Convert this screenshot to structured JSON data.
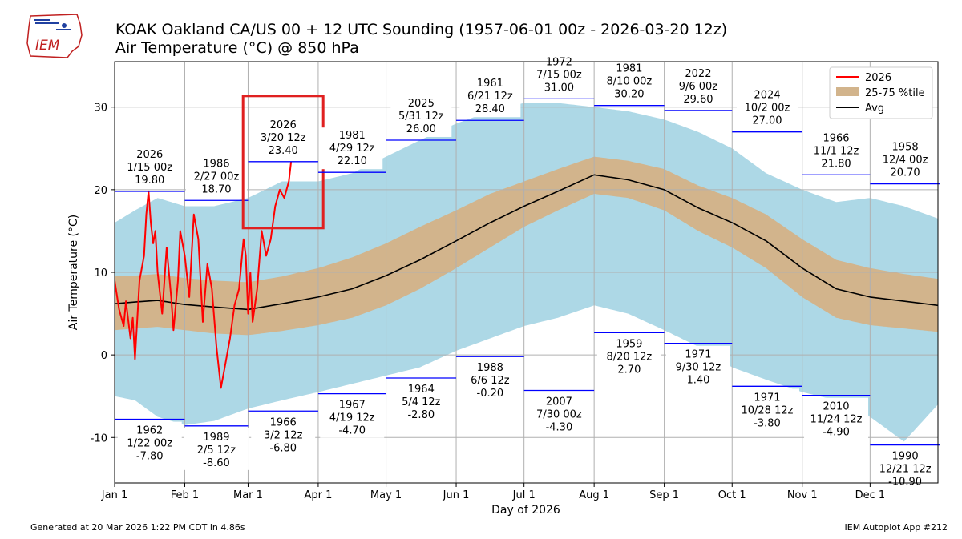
{
  "header": {
    "logo_text": "IEM",
    "title_line1": "KOAK Oakland  CA/US 00 + 12 UTC Sounding (1957-06-01 00z - 2026-03-20 12z)",
    "title_line2": "Air Temperature (°C)  @ 850 hPa"
  },
  "footer": {
    "generated": "Generated at 20 Mar 2026 1:22 PM CDT in 4.86s",
    "app": "IEM Autoplot App #212"
  },
  "colors": {
    "current_year": "#ff0000",
    "percentile_band": "#d2b48c",
    "range_band": "#add8e6",
    "average": "#000000",
    "record_line": "#0000ff",
    "highlight_box": "#e02020"
  },
  "chart_data": {
    "type": "line",
    "xlabel": "Day of 2026",
    "ylabel": "Air Temperature (°C)",
    "xlim": [
      1,
      365
    ],
    "ylim": [
      -15.5,
      35.5
    ],
    "y_ticks": [
      -10,
      0,
      10,
      20,
      30
    ],
    "x_ticks": [
      {
        "label": "Jan 1",
        "day": 1
      },
      {
        "label": "Feb 1",
        "day": 32
      },
      {
        "label": "Mar 1",
        "day": 60
      },
      {
        "label": "Apr 1",
        "day": 91
      },
      {
        "label": "May 1",
        "day": 121
      },
      {
        "label": "Jun 1",
        "day": 152
      },
      {
        "label": "Jul 1",
        "day": 182
      },
      {
        "label": "Aug 1",
        "day": 213
      },
      {
        "label": "Sep 1",
        "day": 244
      },
      {
        "label": "Oct 1",
        "day": 274
      },
      {
        "label": "Nov 1",
        "day": 305
      },
      {
        "label": "Dec 1",
        "day": 335
      }
    ],
    "grid": true,
    "legend_position": "top-right",
    "legend": [
      {
        "label": "2026",
        "kind": "line",
        "color": "#ff0000"
      },
      {
        "label": "25-75 %tile",
        "kind": "patch",
        "color": "#d2b48c"
      },
      {
        "label": "Avg",
        "kind": "line",
        "color": "#000000"
      }
    ],
    "series": [
      {
        "name": "Avg",
        "x": [
          1,
          10,
          20,
          32,
          45,
          60,
          75,
          91,
          106,
          121,
          136,
          152,
          167,
          182,
          197,
          213,
          228,
          244,
          259,
          274,
          289,
          305,
          320,
          335,
          350,
          365
        ],
        "y": [
          6.2,
          6.4,
          6.6,
          6.1,
          5.8,
          5.5,
          6.2,
          7.0,
          8.0,
          9.6,
          11.5,
          13.8,
          16.0,
          18.0,
          19.8,
          21.8,
          21.2,
          20.0,
          17.8,
          16.0,
          13.8,
          10.5,
          8.0,
          7.0,
          6.5,
          6.0
        ]
      },
      {
        "name": "25th percentile",
        "x": [
          1,
          10,
          20,
          32,
          45,
          60,
          75,
          91,
          106,
          121,
          136,
          152,
          167,
          182,
          197,
          213,
          228,
          244,
          259,
          274,
          289,
          305,
          320,
          335,
          350,
          365
        ],
        "y": [
          3.0,
          3.2,
          3.4,
          3.0,
          2.6,
          2.4,
          2.9,
          3.6,
          4.5,
          6.0,
          8.0,
          10.5,
          13.0,
          15.5,
          17.5,
          19.5,
          19.0,
          17.5,
          15.0,
          13.0,
          10.5,
          7.0,
          4.5,
          3.6,
          3.2,
          2.8
        ]
      },
      {
        "name": "75th percentile",
        "x": [
          1,
          10,
          20,
          32,
          45,
          60,
          75,
          91,
          106,
          121,
          136,
          152,
          167,
          182,
          197,
          213,
          228,
          244,
          259,
          274,
          289,
          305,
          320,
          335,
          350,
          365
        ],
        "y": [
          9.5,
          9.6,
          9.8,
          9.3,
          9.0,
          8.8,
          9.5,
          10.5,
          11.8,
          13.5,
          15.5,
          17.5,
          19.5,
          21.0,
          22.5,
          24.0,
          23.5,
          22.5,
          20.5,
          19.0,
          17.0,
          14.0,
          11.5,
          10.5,
          9.8,
          9.2
        ]
      },
      {
        "name": "Minimum",
        "x": [
          1,
          10,
          20,
          32,
          45,
          60,
          75,
          91,
          106,
          121,
          136,
          152,
          167,
          182,
          197,
          213,
          228,
          244,
          259,
          274,
          289,
          305,
          320,
          335,
          350,
          365
        ],
        "y": [
          -5.0,
          -5.5,
          -7.5,
          -8.5,
          -8.0,
          -6.5,
          -5.5,
          -4.5,
          -3.5,
          -2.5,
          -1.5,
          0.5,
          2.0,
          3.5,
          4.5,
          6.0,
          5.0,
          3.0,
          1.0,
          -1.5,
          -3.0,
          -4.5,
          -5.5,
          -7.5,
          -10.5,
          -6.0
        ]
      },
      {
        "name": "Maximum",
        "x": [
          1,
          10,
          20,
          32,
          45,
          60,
          75,
          91,
          106,
          121,
          136,
          152,
          167,
          182,
          197,
          213,
          228,
          244,
          259,
          274,
          289,
          305,
          320,
          335,
          350,
          365
        ],
        "y": [
          16.0,
          17.5,
          19.0,
          18.0,
          18.0,
          19.0,
          21.0,
          21.0,
          22.0,
          24.0,
          26.0,
          28.0,
          29.5,
          30.5,
          30.5,
          30.0,
          29.5,
          28.5,
          27.0,
          25.0,
          22.0,
          20.0,
          18.5,
          19.0,
          18.0,
          16.5
        ]
      },
      {
        "name": "2026",
        "x": [
          1,
          3,
          5,
          6,
          8,
          9,
          10,
          12,
          14,
          15,
          16,
          17,
          18,
          19,
          20,
          22,
          24,
          26,
          27,
          29,
          30,
          32,
          34,
          36,
          38,
          40,
          42,
          44,
          46,
          48,
          50,
          52,
          54,
          56,
          58,
          59,
          60,
          61,
          62,
          64,
          66,
          68,
          70,
          72,
          74,
          76,
          78,
          79
        ],
        "y": [
          9.0,
          5.5,
          3.5,
          6.5,
          2.0,
          4.5,
          -0.5,
          9.0,
          12.0,
          17.0,
          19.8,
          16.0,
          13.5,
          15.0,
          10.0,
          5.0,
          13.0,
          7.0,
          3.0,
          9.0,
          15.0,
          12.0,
          7.0,
          17.0,
          14.0,
          4.0,
          11.0,
          8.0,
          1.0,
          -4.0,
          -1.0,
          2.0,
          6.0,
          8.0,
          14.0,
          12.0,
          5.0,
          10.0,
          4.0,
          8.0,
          15.0,
          12.0,
          14.0,
          18.0,
          20.0,
          19.0,
          21.0,
          23.4
        ]
      }
    ],
    "record_highs": [
      {
        "start": 1,
        "end": 31,
        "value": 19.8,
        "year": "2026",
        "date": "1/15 00z",
        "label": "19.80"
      },
      {
        "start": 32,
        "end": 59,
        "value": 18.7,
        "year": "1986",
        "date": "2/27 00z",
        "label": "18.70"
      },
      {
        "start": 60,
        "end": 90,
        "value": 23.4,
        "year": "2026",
        "date": "3/20 12z",
        "label": "23.40"
      },
      {
        "start": 91,
        "end": 120,
        "value": 22.1,
        "year": "1981",
        "date": "4/29 12z",
        "label": "22.10"
      },
      {
        "start": 121,
        "end": 151,
        "value": 26.0,
        "year": "2025",
        "date": "5/31 12z",
        "label": "26.00"
      },
      {
        "start": 152,
        "end": 181,
        "value": 28.4,
        "year": "1961",
        "date": "6/21 12z",
        "label": "28.40"
      },
      {
        "start": 182,
        "end": 212,
        "value": 31.0,
        "year": "1972",
        "date": "7/15 00z",
        "label": "31.00"
      },
      {
        "start": 213,
        "end": 243,
        "value": 30.2,
        "year": "1981",
        "date": "8/10 00z",
        "label": "30.20"
      },
      {
        "start": 244,
        "end": 273,
        "value": 29.6,
        "year": "2022",
        "date": "9/6 00z",
        "label": "29.60"
      },
      {
        "start": 274,
        "end": 304,
        "value": 27.0,
        "year": "2024",
        "date": "10/2 00z",
        "label": "27.00"
      },
      {
        "start": 305,
        "end": 334,
        "value": 21.8,
        "year": "1966",
        "date": "11/1 12z",
        "label": "21.80"
      },
      {
        "start": 335,
        "end": 365,
        "value": 20.7,
        "year": "1958",
        "date": "12/4 00z",
        "label": "20.70"
      }
    ],
    "record_lows": [
      {
        "start": 1,
        "end": 31,
        "value": -7.8,
        "year": "1962",
        "date": "1/22 00z",
        "label": "-7.80"
      },
      {
        "start": 32,
        "end": 59,
        "value": -8.6,
        "year": "1989",
        "date": "2/5 12z",
        "label": "-8.60"
      },
      {
        "start": 60,
        "end": 90,
        "value": -6.8,
        "year": "1966",
        "date": "3/2 12z",
        "label": "-6.80"
      },
      {
        "start": 91,
        "end": 120,
        "value": -4.7,
        "year": "1967",
        "date": "4/19 12z",
        "label": "-4.70"
      },
      {
        "start": 121,
        "end": 151,
        "value": -2.8,
        "year": "1964",
        "date": "5/4 12z",
        "label": "-2.80"
      },
      {
        "start": 152,
        "end": 181,
        "value": -0.2,
        "year": "1988",
        "date": "6/6 12z",
        "label": "-0.20"
      },
      {
        "start": 182,
        "end": 212,
        "value": -4.3,
        "year": "2007",
        "date": "7/30 00z",
        "label": "-4.30"
      },
      {
        "start": 213,
        "end": 243,
        "value": 2.7,
        "year": "1959",
        "date": "8/20 12z",
        "label": "2.70"
      },
      {
        "start": 244,
        "end": 273,
        "value": 1.4,
        "year": "1971",
        "date": "9/30 12z",
        "label": "1.40"
      },
      {
        "start": 274,
        "end": 304,
        "value": -3.8,
        "year": "1971",
        "date": "10/28 12z",
        "label": "-3.80"
      },
      {
        "start": 305,
        "end": 334,
        "value": -4.9,
        "year": "2010",
        "date": "11/24 12z",
        "label": "-4.90"
      },
      {
        "start": 335,
        "end": 365,
        "value": -10.9,
        "year": "1990",
        "date": "12/21 12z",
        "label": "-10.90"
      }
    ],
    "highlighted_month_index": 2
  }
}
